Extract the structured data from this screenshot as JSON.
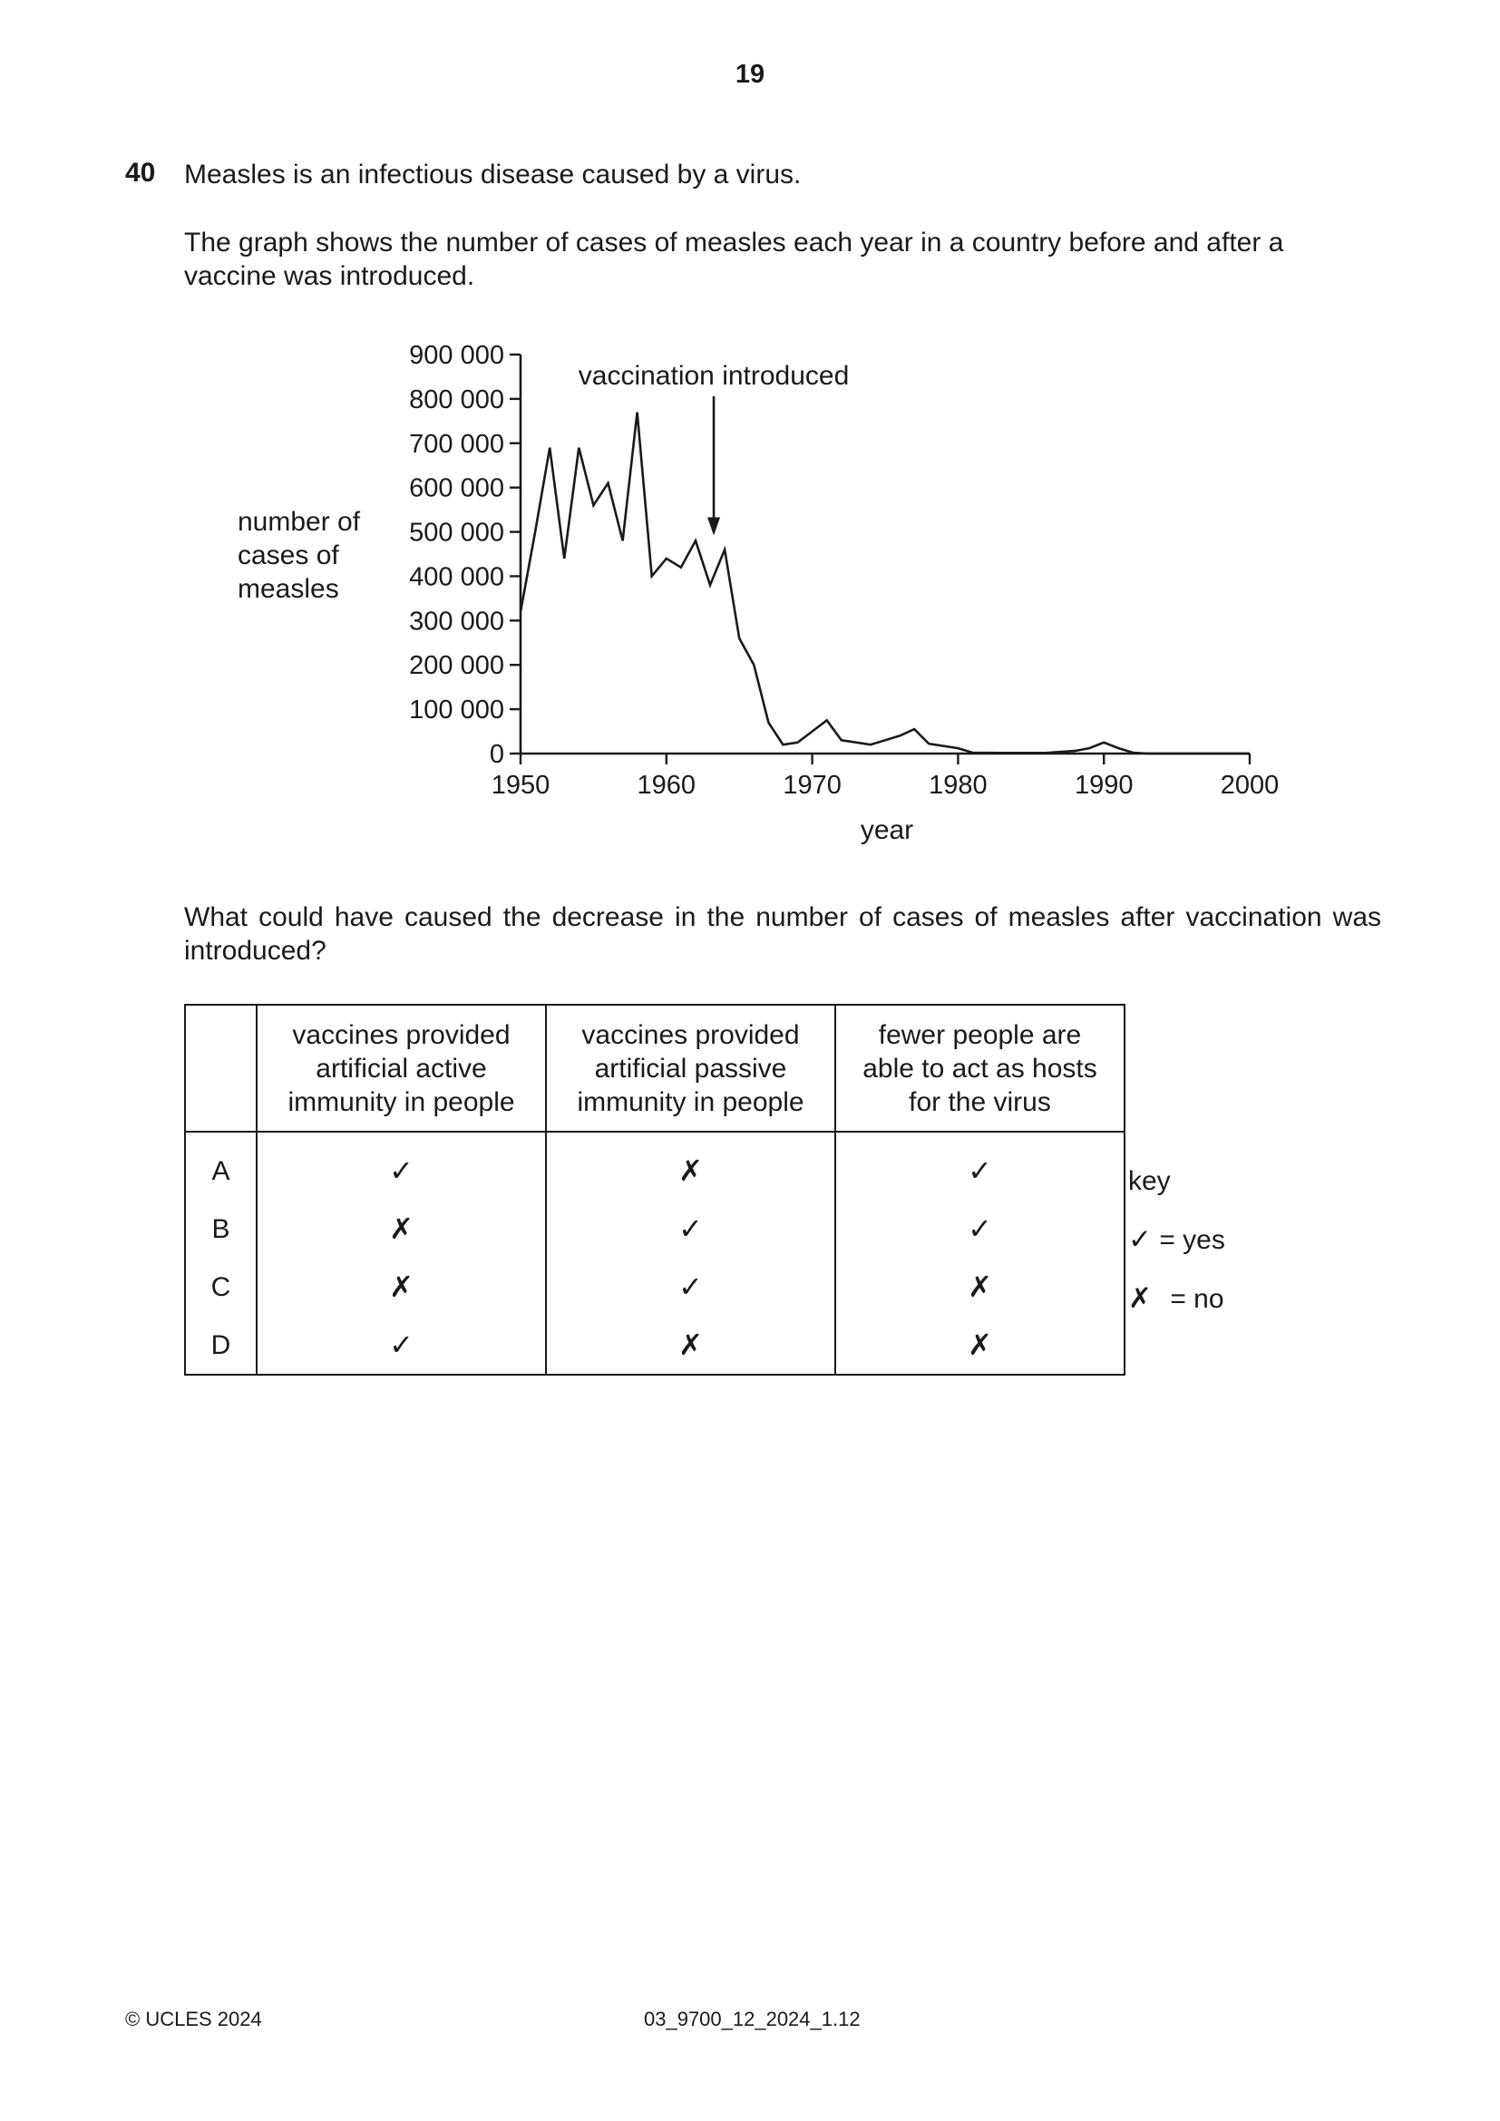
{
  "page_number": "19",
  "question": {
    "number": "40",
    "intro": "Measles is an infectious disease caused by a virus.",
    "stem": "The graph shows the number of cases of measles each year in a country before and after a vaccine was introduced.",
    "prompt": "What could have caused the decrease in the number of cases of measles after vaccination was introduced?"
  },
  "chart_data": {
    "type": "line",
    "xlabel": "year",
    "ylabel": [
      "number of",
      "cases of",
      "measles"
    ],
    "xlim": [
      1950,
      2000
    ],
    "ylim": [
      0,
      900000
    ],
    "x_ticks": [
      "1950",
      "1960",
      "1970",
      "1980",
      "1990",
      "2000"
    ],
    "y_ticks": [
      "0",
      "100 000",
      "200 000",
      "300 000",
      "400 000",
      "500 000",
      "600 000",
      "700 000",
      "800 000",
      "900 000"
    ],
    "x_tick_values": [
      1950,
      1960,
      1970,
      1980,
      1990,
      2000
    ],
    "y_tick_values": [
      0,
      100000,
      200000,
      300000,
      400000,
      500000,
      600000,
      700000,
      800000,
      900000
    ],
    "series": [
      {
        "x": [
          1950,
          1951,
          1952,
          1953,
          1954,
          1955,
          1956,
          1957,
          1958,
          1959,
          1960,
          1961,
          1962,
          1963,
          1964,
          1965,
          1966,
          1967,
          1968,
          1969,
          1970,
          1971,
          1972,
          1974,
          1976,
          1977,
          1978,
          1980,
          1981,
          1983,
          1986,
          1988,
          1989,
          1990,
          1991,
          1992
        ],
        "values": [
          320000,
          500000,
          690000,
          440000,
          690000,
          560000,
          610000,
          480000,
          770000,
          400000,
          440000,
          420000,
          480000,
          380000,
          460000,
          260000,
          200000,
          70000,
          20000,
          25000,
          50000,
          75000,
          30000,
          20000,
          40000,
          55000,
          22000,
          12000,
          2000,
          1500,
          1500,
          6000,
          12000,
          25000,
          12000,
          2000
        ]
      }
    ],
    "annotation": {
      "text": "vaccination introduced",
      "x": 1963,
      "y": 500000
    },
    "grid": false
  },
  "table": {
    "headers": [
      "",
      [
        "vaccines provided",
        "artificial active",
        "immunity in people"
      ],
      [
        "vaccines provided",
        "artificial passive",
        "immunity in people"
      ],
      [
        "fewer people are",
        "able to act as hosts",
        "for the virus"
      ]
    ],
    "rows": [
      {
        "letter": "A",
        "values": [
          "✓",
          "✗",
          "✓"
        ]
      },
      {
        "letter": "B",
        "values": [
          "✗",
          "✓",
          "✓"
        ]
      },
      {
        "letter": "C",
        "values": [
          "✗",
          "✓",
          "✗"
        ]
      },
      {
        "letter": "D",
        "values": [
          "✓",
          "✗",
          "✗"
        ]
      }
    ]
  },
  "key": {
    "title": "key",
    "yes_symbol": "✓",
    "yes_text": "= yes",
    "no_symbol": "✗",
    "no_text": "= no"
  },
  "footer": {
    "copyright": "© UCLES 2024",
    "code": "03_9700_12_2024_1.12"
  }
}
